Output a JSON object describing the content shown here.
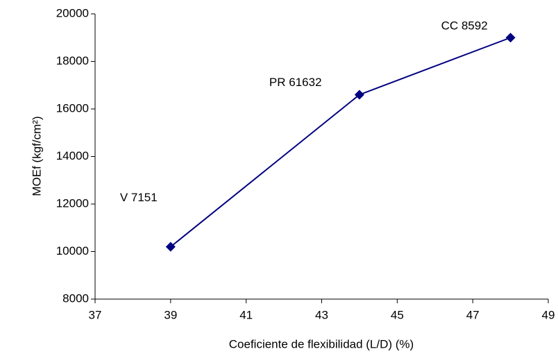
{
  "chart_data": {
    "type": "line",
    "xlabel": "Coeficiente de flexibilidad (L/D) (%)",
    "ylabel": "MOEf (kgf/cm²)",
    "x": [
      39,
      44,
      48
    ],
    "series": [
      {
        "color": "#000080",
        "values": [
          10200,
          16600,
          19000
        ]
      }
    ],
    "annotations": [
      "V  7151",
      "PR 61632",
      "CC 8592"
    ],
    "xlim": [
      37,
      49
    ],
    "xticks": [
      37,
      39,
      41,
      43,
      45,
      47,
      49
    ],
    "ylim": [
      8000,
      20000
    ],
    "yticks": [
      8000,
      10000,
      12000,
      14000,
      16000,
      18000,
      20000
    ],
    "grid": false
  }
}
